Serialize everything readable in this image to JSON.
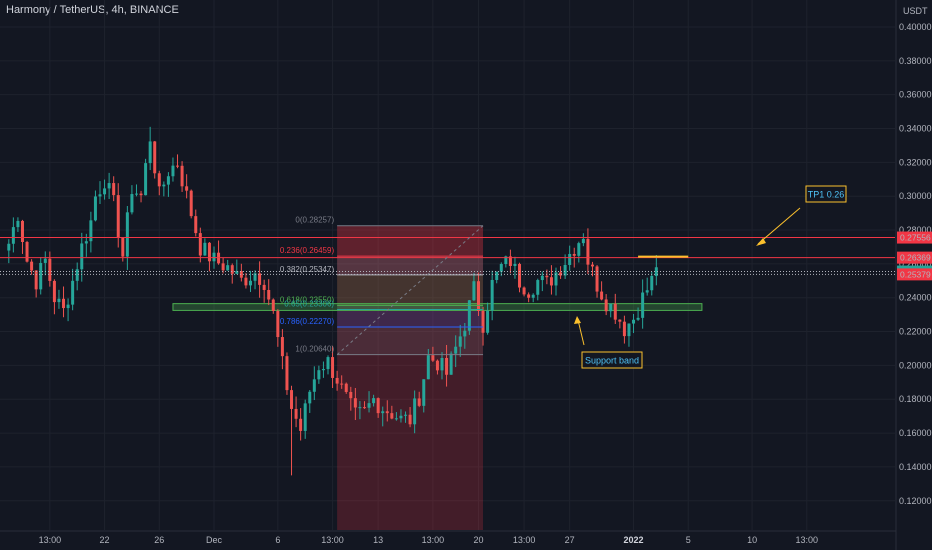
{
  "header": {
    "title": "Harmony / TetherUS, 4h, BINANCE",
    "currency": "USDT"
  },
  "chart_data": {
    "type": "candlestick",
    "title": "Harmony / TetherUS, 4h, BINANCE",
    "ylim": [
      0.1,
      0.41
    ],
    "y_ticks": [
      "0.40000",
      "0.38000",
      "0.36000",
      "0.34000",
      "0.32000",
      "0.30000",
      "0.28000",
      "0.26000",
      "0.24000",
      "0.22000",
      "0.20000",
      "0.18000",
      "0.16000",
      "0.14000",
      "0.12000"
    ],
    "y_tick_values": [
      0.4,
      0.38,
      0.36,
      0.34,
      0.32,
      0.3,
      0.28,
      0.26,
      0.24,
      0.22,
      0.2,
      0.18,
      0.16,
      0.14,
      0.12
    ],
    "x_ticks": [
      "13:00",
      "22",
      "26",
      "Dec",
      "6",
      "13:00",
      "13",
      "13:00",
      "20",
      "13:00",
      "27",
      "2022",
      "5",
      "10",
      "13:00"
    ],
    "x_tick_index": [
      9,
      21,
      33,
      45,
      59,
      71,
      81,
      93,
      103,
      113,
      123,
      137,
      149,
      163,
      175
    ],
    "x_tick_bold": "2022",
    "candle_count": 192,
    "key_closes": [
      [
        0,
        0.272
      ],
      [
        2,
        0.29
      ],
      [
        4,
        0.262
      ],
      [
        6,
        0.25
      ],
      [
        8,
        0.262
      ],
      [
        10,
        0.24
      ],
      [
        12,
        0.232
      ],
      [
        14,
        0.25
      ],
      [
        16,
        0.27
      ],
      [
        18,
        0.285
      ],
      [
        19,
        0.3
      ],
      [
        21,
        0.31
      ],
      [
        23,
        0.295
      ],
      [
        25,
        0.265
      ],
      [
        27,
        0.305
      ],
      [
        29,
        0.3
      ],
      [
        31,
        0.335
      ],
      [
        33,
        0.3
      ],
      [
        35,
        0.315
      ],
      [
        37,
        0.32
      ],
      [
        39,
        0.3
      ],
      [
        42,
        0.27
      ],
      [
        45,
        0.262
      ],
      [
        48,
        0.258
      ],
      [
        51,
        0.25
      ],
      [
        54,
        0.255
      ],
      [
        56,
        0.25
      ],
      [
        58,
        0.23
      ],
      [
        60,
        0.2
      ],
      [
        62,
        0.175
      ],
      [
        64,
        0.162
      ],
      [
        66,
        0.185
      ],
      [
        68,
        0.2
      ],
      [
        70,
        0.202
      ],
      [
        72,
        0.192
      ],
      [
        74,
        0.18
      ],
      [
        76,
        0.17
      ],
      [
        78,
        0.172
      ],
      [
        80,
        0.18
      ],
      [
        82,
        0.175
      ],
      [
        84,
        0.172
      ],
      [
        86,
        0.168
      ],
      [
        88,
        0.168
      ],
      [
        90,
        0.182
      ],
      [
        92,
        0.205
      ],
      [
        94,
        0.202
      ],
      [
        96,
        0.195
      ],
      [
        98,
        0.21
      ],
      [
        100,
        0.225
      ],
      [
        102,
        0.245
      ],
      [
        104,
        0.225
      ],
      [
        106,
        0.248
      ],
      [
        108,
        0.258
      ],
      [
        110,
        0.262
      ],
      [
        112,
        0.25
      ],
      [
        114,
        0.245
      ],
      [
        116,
        0.25
      ],
      [
        118,
        0.248
      ],
      [
        120,
        0.255
      ],
      [
        122,
        0.262
      ],
      [
        124,
        0.27
      ],
      [
        126,
        0.278
      ],
      [
        127,
        0.262
      ],
      [
        129,
        0.248
      ],
      [
        131,
        0.238
      ],
      [
        133,
        0.232
      ],
      [
        135,
        0.222
      ],
      [
        137,
        0.228
      ],
      [
        139,
        0.24
      ],
      [
        141,
        0.25
      ],
      [
        142,
        0.258
      ]
    ],
    "fibonacci": [
      {
        "ratio": "0",
        "value": 0.28257,
        "label": "0(0.28257)",
        "color": "#787b86"
      },
      {
        "ratio": "0.236",
        "value": 0.26459,
        "label": "0.236(0.26459)",
        "color": "#f23645"
      },
      {
        "ratio": "0.382",
        "value": 0.25347,
        "label": "0.382(0.25347)",
        "color": "#b2b5be"
      },
      {
        "ratio": "0.618",
        "value": 0.2355,
        "label": "0.618(0.23550)",
        "color": "#4caf50"
      },
      {
        "ratio": "0.65",
        "value": 0.23306,
        "label": "0.65(0.23306)",
        "color": "#26a69a"
      },
      {
        "ratio": "0.786",
        "value": 0.2227,
        "label": "0.786(0.22270)",
        "color": "#2962ff"
      },
      {
        "ratio": "1",
        "value": 0.2064,
        "label": "1(0.20640)",
        "color": "#787b86"
      }
    ],
    "fib_index_range": [
      72,
      104
    ],
    "red_zone": {
      "index_range": [
        72,
        104
      ],
      "value_range": [
        0.1,
        0.28257
      ]
    },
    "horizontal_lines": [
      0.27556,
      0.26369
    ],
    "dotted_lines": [
      0.25546,
      0.25379
    ],
    "support_band": {
      "value_range": [
        0.2325,
        0.2365
      ],
      "index_range": [
        36,
        152
      ]
    },
    "tp_line": {
      "value": 0.2643,
      "index_range": [
        138,
        149
      ]
    },
    "price_tags": [
      {
        "label": "0.27556",
        "value": 0.27556,
        "color": "#f23645"
      },
      {
        "label": "0.26369",
        "value": 0.26369,
        "color": "#f23645"
      },
      {
        "label": "0.25546",
        "value": 0.25546,
        "color": "#26a69a"
      },
      {
        "label": "0.25379",
        "value": 0.25379,
        "color": "#f23645"
      }
    ],
    "annotations": [
      {
        "text": "TP1 0.26",
        "color": "#fbc02d"
      },
      {
        "text": "Support band",
        "color": "#fbc02d"
      }
    ],
    "colors": {
      "up": "#26a69a",
      "down": "#ef5350",
      "background": "#131722",
      "grid": "#1e222d",
      "axis_text": "#b2b5be"
    }
  }
}
